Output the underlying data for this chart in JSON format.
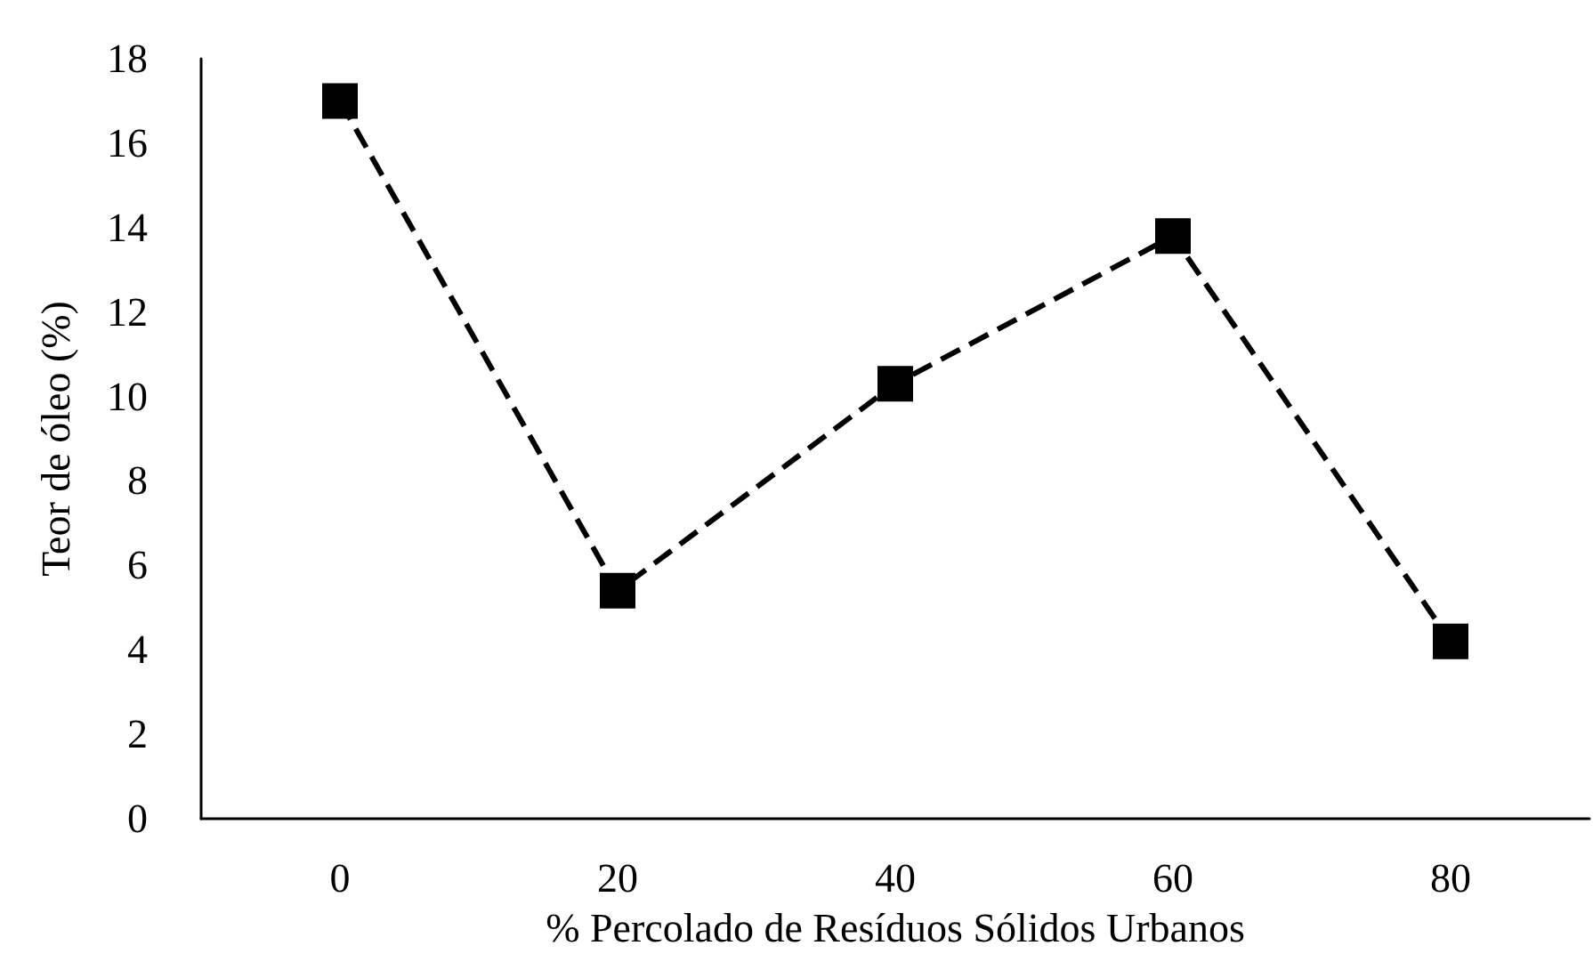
{
  "chart_data": {
    "type": "line",
    "xlabel": "% Percolado de Resíduos Sólidos Urbanos",
    "ylabel": "Teor de óleo (%)",
    "categories": [
      "0",
      "20",
      "40",
      "60",
      "80"
    ],
    "series": [
      {
        "color": "#000000",
        "values": [
          17,
          5.4,
          10.3,
          13.8,
          4.2
        ]
      }
    ],
    "ylim": [
      0,
      18
    ],
    "yticks": [
      0,
      2,
      4,
      6,
      8,
      10,
      12,
      14,
      16,
      18
    ],
    "grid": false,
    "marker": "square",
    "line_style": "dashed"
  }
}
